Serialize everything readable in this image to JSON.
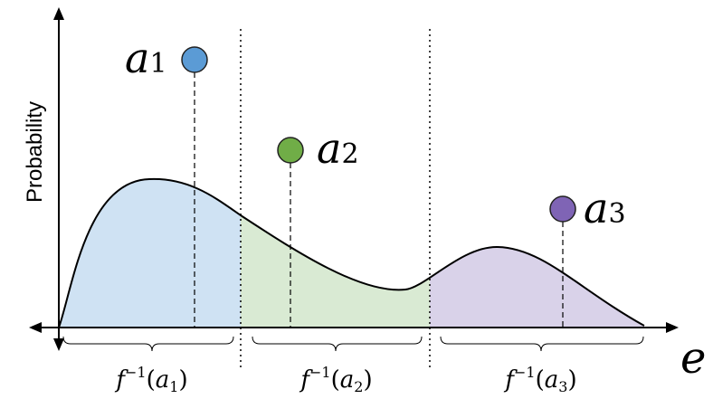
{
  "y_axis": {
    "label": "Probability"
  },
  "x_axis": {
    "label": "e"
  },
  "actions": [
    {
      "symbol": "a",
      "index": "1",
      "color": "#5b9bd5",
      "fill": "#cfe2f3"
    },
    {
      "symbol": "a",
      "index": "2",
      "color": "#70ad47",
      "fill": "#d9ead3"
    },
    {
      "symbol": "a",
      "index": "3",
      "color": "#7f64b5",
      "fill": "#d9d2e9"
    }
  ],
  "preimages": [
    {
      "prefix": "f",
      "sup": "−1",
      "arg_symbol": "a",
      "arg_index": "1"
    },
    {
      "prefix": "f",
      "sup": "−1",
      "arg_symbol": "a",
      "arg_index": "2"
    },
    {
      "prefix": "f",
      "sup": "−1",
      "arg_symbol": "a",
      "arg_index": "3"
    }
  ]
}
